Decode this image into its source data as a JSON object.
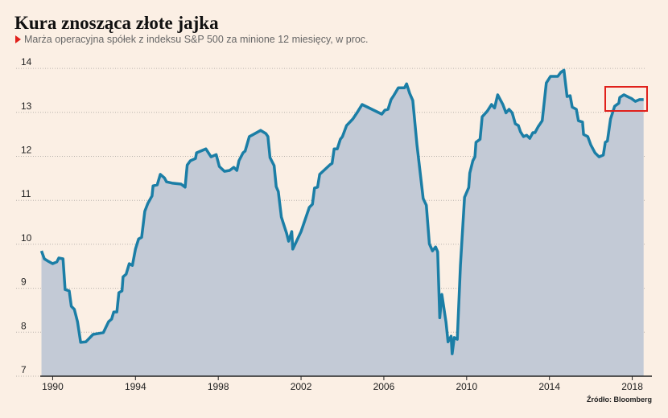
{
  "chart_data": {
    "type": "area",
    "title": "Kura znosząca złote jajka",
    "subtitle": "Marża operacyjna spółek z indeksu S&P 500 za minione 12 miesięcy, w proc.",
    "source": "Źródło: Bloomberg",
    "x": [
      1989.46,
      1989.6,
      1989.8,
      1990.0,
      1990.2,
      1990.3,
      1990.5,
      1990.6,
      1990.8,
      1990.9,
      1991.05,
      1991.2,
      1991.35,
      1991.6,
      1991.95,
      1992.45,
      1992.7,
      1992.85,
      1992.95,
      1993.1,
      1993.2,
      1993.35,
      1993.4,
      1993.55,
      1993.7,
      1993.85,
      1994.0,
      1994.15,
      1994.3,
      1994.45,
      1994.6,
      1994.8,
      1994.85,
      1995.05,
      1995.2,
      1995.4,
      1995.5,
      1995.8,
      1996.2,
      1996.4,
      1996.5,
      1996.65,
      1996.9,
      1996.95,
      1997.4,
      1997.65,
      1997.9,
      1998.05,
      1998.3,
      1998.55,
      1998.75,
      1998.9,
      1999.0,
      1999.2,
      1999.3,
      1999.5,
      1999.7,
      2000.05,
      2000.3,
      2000.4,
      2000.5,
      2000.7,
      2000.8,
      2000.9,
      2001.05,
      2001.15,
      2001.3,
      2001.4,
      2001.55,
      2001.6,
      2002.0,
      2002.4,
      2002.55,
      2002.65,
      2002.8,
      2002.9,
      2003.4,
      2003.5,
      2003.6,
      2003.75,
      2003.9,
      2004.0,
      2004.2,
      2004.5,
      2004.7,
      2004.95,
      2005.9,
      2006.05,
      2006.2,
      2006.35,
      2006.5,
      2006.7,
      2007.0,
      2007.1,
      2007.25,
      2007.4,
      2007.6,
      2007.9,
      2008.05,
      2008.2,
      2008.35,
      2008.5,
      2008.6,
      2008.7,
      2008.8,
      2009.0,
      2009.1,
      2009.25,
      2009.3,
      2009.4,
      2009.55,
      2009.7,
      2009.9,
      2010.1,
      2010.15,
      2010.3,
      2010.4,
      2010.45,
      2010.65,
      2010.75,
      2011.0,
      2011.2,
      2011.35,
      2011.5,
      2011.75,
      2011.9,
      2012.05,
      2012.2,
      2012.35,
      2012.5,
      2012.6,
      2012.75,
      2012.9,
      2013.05,
      2013.2,
      2013.3,
      2013.45,
      2013.65,
      2013.85,
      2014.05,
      2014.4,
      2014.55,
      2014.7,
      2014.85,
      2015.0,
      2015.1,
      2015.3,
      2015.4,
      2015.6,
      2015.65,
      2015.85,
      2016.0,
      2016.2,
      2016.4,
      2016.6,
      2016.7,
      2016.8,
      2016.95,
      2017.15,
      2017.35,
      2017.4,
      2017.6,
      2017.85,
      2017.95,
      2018.15,
      2018.35,
      2018.55
    ],
    "series": [
      {
        "color": "#1b7ea6",
        "fill": "#c3cad6",
        "values": [
          9.85,
          9.67,
          9.61,
          9.56,
          9.6,
          9.69,
          9.67,
          8.97,
          8.94,
          8.59,
          8.52,
          8.24,
          7.77,
          7.78,
          7.95,
          7.99,
          8.24,
          8.3,
          8.46,
          8.46,
          8.9,
          8.94,
          9.26,
          9.32,
          9.56,
          9.52,
          9.89,
          10.12,
          10.16,
          10.75,
          10.93,
          11.1,
          11.33,
          11.35,
          11.59,
          11.51,
          11.42,
          11.39,
          11.37,
          11.3,
          11.8,
          11.9,
          11.95,
          12.08,
          12.17,
          11.99,
          12.04,
          11.77,
          11.66,
          11.68,
          11.75,
          11.68,
          11.9,
          12.08,
          12.12,
          12.45,
          12.5,
          12.59,
          12.52,
          12.45,
          11.97,
          11.79,
          11.31,
          11.2,
          10.62,
          10.47,
          10.25,
          10.07,
          10.29,
          9.89,
          10.29,
          10.84,
          10.91,
          11.28,
          11.3,
          11.59,
          11.81,
          11.84,
          12.17,
          12.17,
          12.39,
          12.45,
          12.7,
          12.85,
          12.99,
          13.18,
          12.96,
          13.05,
          13.07,
          13.29,
          13.4,
          13.56,
          13.56,
          13.65,
          13.43,
          13.27,
          12.26,
          11.04,
          10.89,
          10.01,
          9.85,
          9.94,
          9.83,
          8.33,
          8.86,
          8.24,
          7.78,
          7.91,
          7.51,
          7.88,
          7.84,
          9.52,
          11.07,
          11.29,
          11.62,
          11.9,
          11.99,
          12.32,
          12.39,
          12.9,
          13.03,
          13.18,
          13.1,
          13.4,
          13.18,
          12.99,
          13.07,
          12.99,
          12.74,
          12.7,
          12.56,
          12.45,
          12.48,
          12.41,
          12.54,
          12.54,
          12.67,
          12.81,
          13.67,
          13.82,
          13.82,
          13.91,
          13.96,
          13.36,
          13.38,
          13.12,
          13.07,
          12.81,
          12.78,
          12.5,
          12.45,
          12.26,
          12.08,
          11.99,
          12.03,
          12.32,
          12.35,
          12.85,
          13.14,
          13.21,
          13.34,
          13.4,
          13.34,
          13.32,
          13.25,
          13.29,
          13.29
        ]
      }
    ],
    "xlim": [
      1989.4,
      2018.6
    ],
    "xticks": [
      1990,
      1994,
      1998,
      2002,
      2006,
      2010,
      2014,
      2018
    ],
    "ylim": [
      7,
      14.3
    ],
    "yticks": [
      7,
      8,
      9,
      10,
      11,
      12,
      13,
      14
    ],
    "grid": true
  }
}
